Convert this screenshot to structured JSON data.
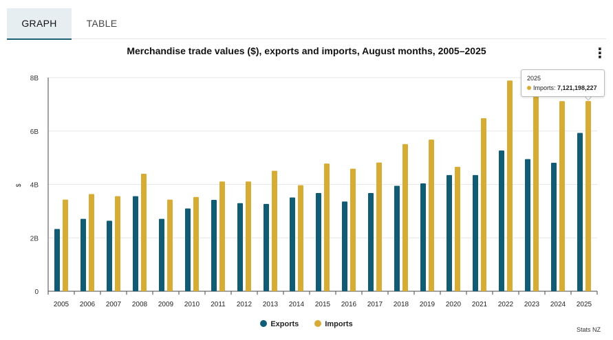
{
  "tabs": {
    "graph": "GRAPH",
    "table": "TABLE"
  },
  "menu_icon": "vertical-ellipsis-icon",
  "colors": {
    "exports": "#0f5c74",
    "imports": "#d6ac34",
    "grid": "#e6e6e6",
    "axis": "#333333"
  },
  "chart_data": {
    "type": "bar",
    "title": "Merchandise trade values ($), exports and imports, August months, 2005–2025",
    "xlabel": "",
    "ylabel": "$",
    "ylim": [
      0,
      8000000000
    ],
    "yticks": [
      0,
      2000000000,
      4000000000,
      6000000000,
      8000000000
    ],
    "ytick_labels": [
      "0",
      "2B",
      "4B",
      "6B",
      "8B"
    ],
    "grid": true,
    "legend_position": "bottom-center",
    "categories": [
      "2005",
      "2006",
      "2007",
      "2008",
      "2009",
      "2010",
      "2011",
      "2012",
      "2013",
      "2014",
      "2015",
      "2016",
      "2017",
      "2018",
      "2019",
      "2020",
      "2021",
      "2022",
      "2023",
      "2024",
      "2025"
    ],
    "series": [
      {
        "name": "Exports",
        "values": [
          2330000000.0,
          2710000000.0,
          2640000000.0,
          3560000000.0,
          2710000000.0,
          3100000000.0,
          3420000000.0,
          3300000000.0,
          3270000000.0,
          3510000000.0,
          3680000000.0,
          3360000000.0,
          3680000000.0,
          3950000000.0,
          4040000000.0,
          4350000000.0,
          4350000000.0,
          5270000000.0,
          4950000000.0,
          4810000000.0,
          5930000000.0
        ]
      },
      {
        "name": "Imports",
        "values": [
          3430000000.0,
          3640000000.0,
          3560000000.0,
          4400000000.0,
          3430000000.0,
          3530000000.0,
          4110000000.0,
          4110000000.0,
          4510000000.0,
          3970000000.0,
          4780000000.0,
          4590000000.0,
          4820000000.0,
          5510000000.0,
          5680000000.0,
          4660000000.0,
          6480000000.0,
          7890000000.0,
          7300000000.0,
          7120000000.0,
          7121198227.0
        ]
      }
    ]
  },
  "legend": [
    {
      "label": "Exports",
      "color": "#0f5c74"
    },
    {
      "label": "Imports",
      "color": "#d6ac34"
    }
  ],
  "tooltip": {
    "year": "2025",
    "label": "Imports: ",
    "value": "7,121,198,227",
    "color": "#d6ac34"
  },
  "credit": "Stats NZ"
}
